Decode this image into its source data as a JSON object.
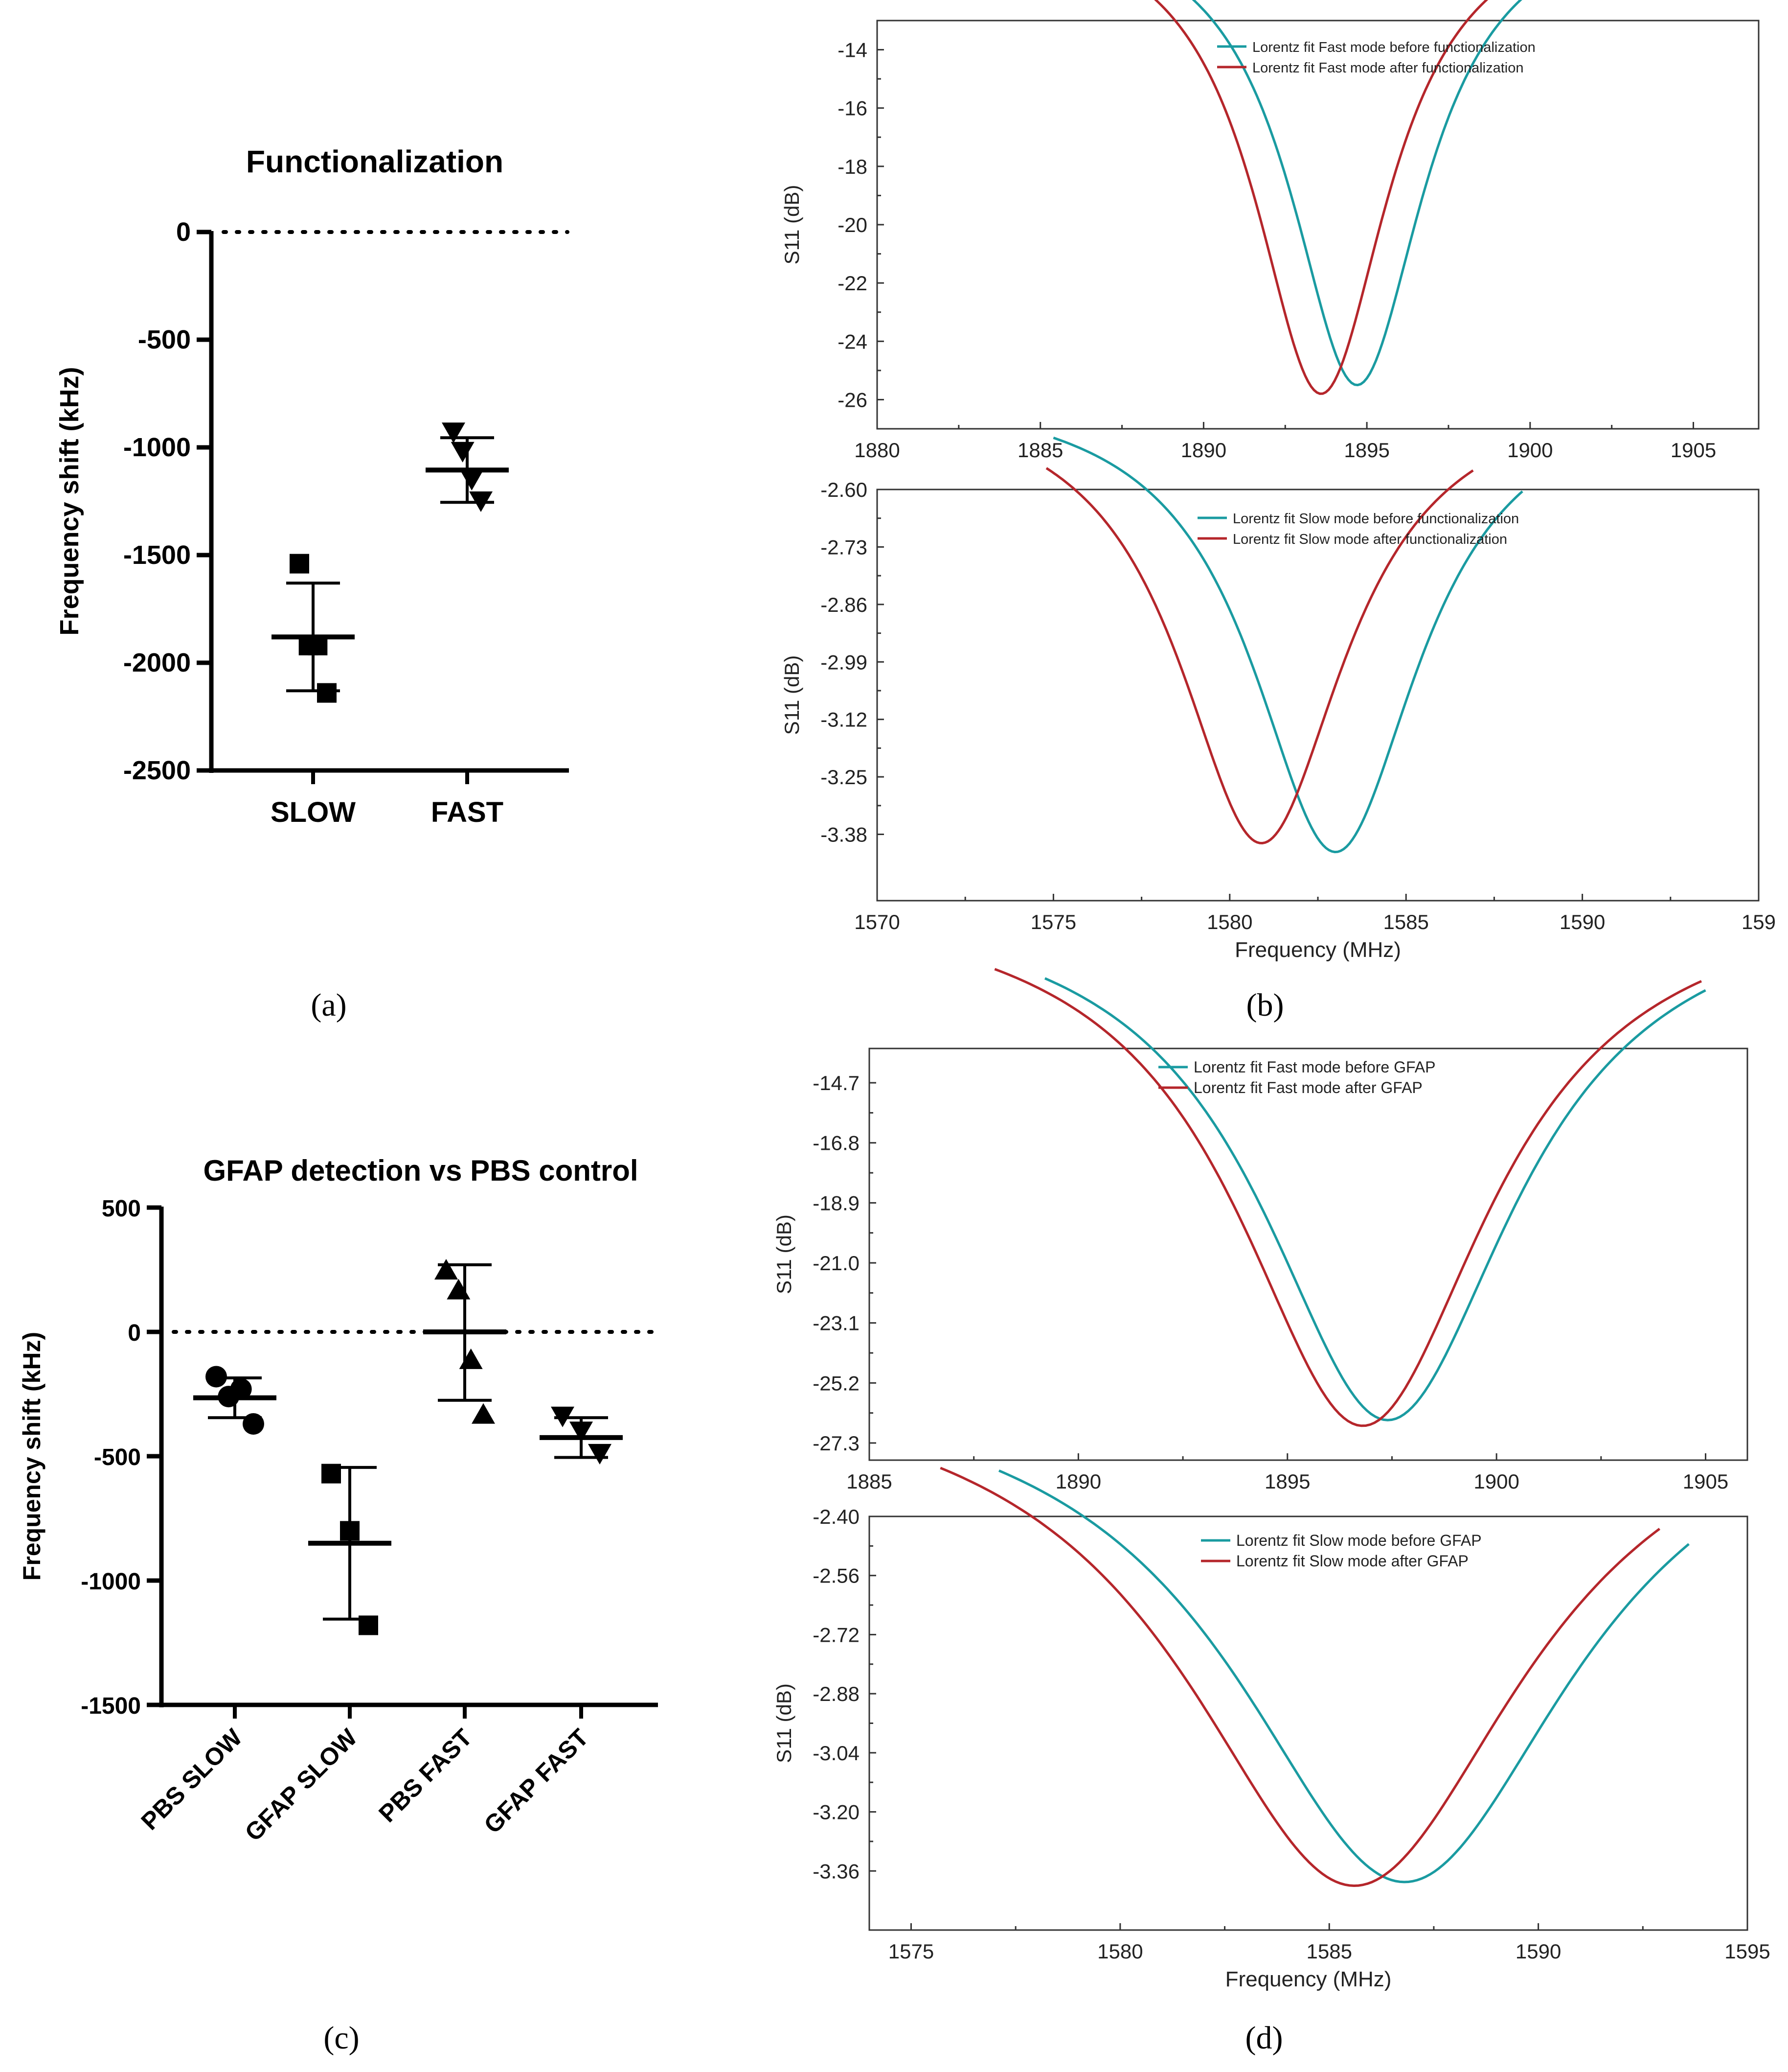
{
  "colors": {
    "before": "#1a9ba1",
    "after": "#b5262b",
    "axis": "#000000",
    "frame": "#333333"
  },
  "panel_labels": [
    "(a)",
    "(b)",
    "(c)",
    "(d)"
  ],
  "chart_data": [
    {
      "id": "a",
      "type": "scatter",
      "title": "Functionalization",
      "ylabel": "Frequency shift (kHz)",
      "ylim": [
        -2500,
        0
      ],
      "yticks": [
        "0",
        "-500",
        "-1000",
        "-1500",
        "-2000",
        "-2500"
      ],
      "zero_line": "dotted",
      "groups": [
        {
          "name": "SLOW",
          "marker": "square",
          "points": [
            -1540,
            -1920,
            -1920,
            -2140
          ],
          "mean": -1880,
          "sd_low": -2130,
          "sd_high": -1630
        },
        {
          "name": "FAST",
          "marker": "triangle-down",
          "points": [
            -930,
            -1020,
            -1150,
            -1250
          ],
          "mean": -1105,
          "sd_low": -1255,
          "sd_high": -955
        }
      ]
    },
    {
      "id": "b-top",
      "type": "line",
      "xlabel": "",
      "ylabel": "S11 (dB)",
      "xlim": [
        1880,
        1907
      ],
      "ylim": [
        -27,
        -13
      ],
      "xticks": [
        "1880",
        "1885",
        "1890",
        "1895",
        "1900",
        "1905"
      ],
      "yticks": [
        "-14",
        "-16",
        "-18",
        "-20",
        "-22",
        "-24",
        "-26"
      ],
      "legend": "top-center",
      "series": [
        {
          "name": "Lorentz fit Fast mode before functionalization",
          "kind": "before",
          "x0": 1894.7,
          "baseline": -9.0,
          "depth": 16.5,
          "gamma": 5.0,
          "xmin": 1886.0,
          "xmax": 1901.0
        },
        {
          "name": "Lorentz fit Fast mode after functionalization",
          "kind": "after",
          "x0": 1893.6,
          "baseline": -9.0,
          "depth": 16.8,
          "gamma": 5.0,
          "xmin": 1886.0,
          "xmax": 1900.4
        }
      ]
    },
    {
      "id": "b-bottom",
      "type": "line",
      "xlabel": "Frequency (MHz)",
      "ylabel": "S11 (dB)",
      "xlim": [
        1570,
        1595
      ],
      "ylim": [
        -3.53,
        -2.6
      ],
      "xticks": [
        "1570",
        "1575",
        "1580",
        "1585",
        "1590",
        "159"
      ],
      "yticks": [
        "-2.60",
        "-2.73",
        "-2.86",
        "-2.99",
        "-3.12",
        "-3.25",
        "-3.38"
      ],
      "legend": "top-center",
      "series": [
        {
          "name": "Lorentz fit Slow mode before functionalization",
          "kind": "before",
          "x0": 1583.0,
          "baseline": -2.36,
          "depth": 1.06,
          "gamma": 5.8,
          "xmin": 1575.0,
          "xmax": 1588.3
        },
        {
          "name": "Lorentz fit Slow mode after functionalization",
          "kind": "after",
          "x0": 1580.9,
          "baseline": -2.36,
          "depth": 1.04,
          "gamma": 5.8,
          "xmin": 1574.8,
          "xmax": 1586.9
        }
      ]
    },
    {
      "id": "c",
      "type": "scatter",
      "title": "GFAP detection vs PBS control",
      "ylabel": "Frequency shift (kHz)",
      "ylim": [
        -1500,
        500
      ],
      "yticks": [
        "500",
        "0",
        "-500",
        "-1000",
        "-1500"
      ],
      "zero_line": "dotted",
      "groups": [
        {
          "name": "PBS SLOW",
          "marker": "circle",
          "points": [
            -180,
            -260,
            -230,
            -370
          ],
          "mean": -265,
          "sd_low": -345,
          "sd_high": -185
        },
        {
          "name": "GFAP SLOW",
          "marker": "square",
          "points": [
            -570,
            -800,
            -1180
          ],
          "mean": -850,
          "sd_low": -1155,
          "sd_high": -545
        },
        {
          "name": "PBS FAST",
          "marker": "triangle-up",
          "points": [
            250,
            170,
            -110,
            -330
          ],
          "mean": 0,
          "sd_low": -275,
          "sd_high": 270
        },
        {
          "name": "GFAP FAST",
          "marker": "triangle-down",
          "points": [
            -340,
            -400,
            -490
          ],
          "mean": -425,
          "sd_low": -505,
          "sd_high": -345
        }
      ]
    },
    {
      "id": "d-top",
      "type": "line",
      "xlabel": "",
      "ylabel": "S11 (dB)",
      "xlim": [
        1885,
        1906
      ],
      "ylim": [
        -27.9,
        -13.5
      ],
      "xticks": [
        "1885",
        "1890",
        "1895",
        "1900",
        "1905"
      ],
      "yticks": [
        "-14.7",
        "-16.8",
        "-18.9",
        "-21.0",
        "-23.1",
        "-25.2",
        "-27.3"
      ],
      "legend": "top-center",
      "series": [
        {
          "name": "Lorentz fit Fast mode before GFAP",
          "kind": "before",
          "x0": 1897.4,
          "baseline": -7.9,
          "depth": 18.6,
          "gamma": 7.4,
          "xmin": 1889.2,
          "xmax": 1905.0
        },
        {
          "name": "Lorentz fit Fast mode after GFAP",
          "kind": "after",
          "x0": 1896.8,
          "baseline": -7.9,
          "depth": 18.8,
          "gamma": 7.4,
          "xmin": 1888.0,
          "xmax": 1904.9
        }
      ]
    },
    {
      "id": "d-bottom",
      "type": "line",
      "xlabel": "Frequency (MHz)",
      "ylabel": "S11 (dB)",
      "xlim": [
        1574,
        1595
      ],
      "ylim": [
        -3.52,
        -2.4
      ],
      "xticks": [
        "1575",
        "1580",
        "1585",
        "1590",
        "1595"
      ],
      "yticks": [
        "-2.40",
        "-2.56",
        "-2.72",
        "-2.88",
        "-3.04",
        "-3.20",
        "-3.36"
      ],
      "legend": "top-center",
      "series": [
        {
          "name": "Lorentz fit Slow mode before GFAP",
          "kind": "before",
          "x0": 1586.8,
          "baseline": -1.98,
          "depth": 1.41,
          "gamma": 10.0,
          "xmin": 1577.1,
          "xmax": 1593.6
        },
        {
          "name": "Lorentz fit Slow mode after GFAP",
          "kind": "after",
          "x0": 1585.6,
          "baseline": -1.98,
          "depth": 1.42,
          "gamma": 10.0,
          "xmin": 1575.7,
          "xmax": 1592.9
        }
      ]
    }
  ]
}
